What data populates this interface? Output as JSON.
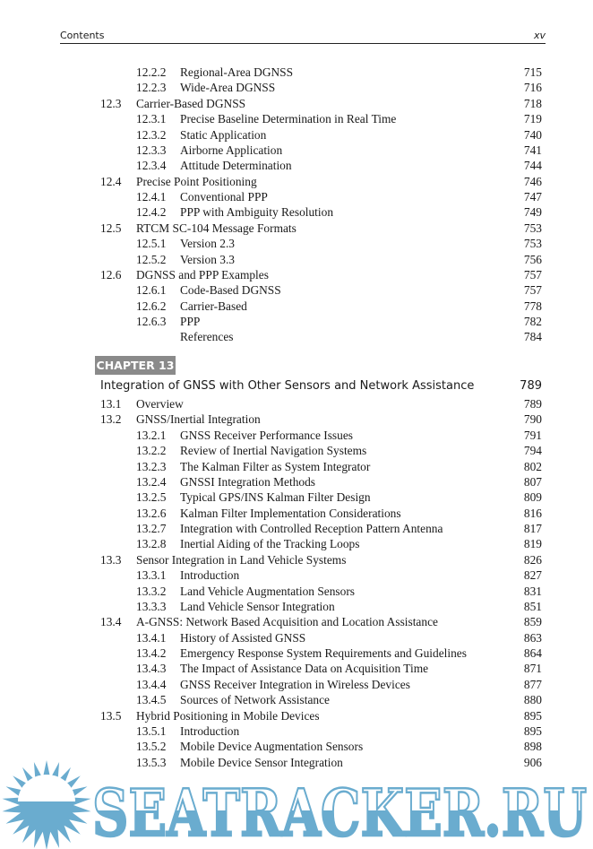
{
  "header": {
    "left": "Contents",
    "right": "xv"
  },
  "toc_before": [
    {
      "level": 2,
      "num": "12.2.2",
      "title": "Regional-Area DGNSS",
      "page": "715"
    },
    {
      "level": 2,
      "num": "12.2.3",
      "title": "Wide-Area DGNSS",
      "page": "716"
    },
    {
      "level": 1,
      "num": "12.3",
      "title": "Carrier-Based DGNSS",
      "page": "718"
    },
    {
      "level": 2,
      "num": "12.3.1",
      "title": "Precise Baseline Determination in Real Time",
      "page": "719"
    },
    {
      "level": 2,
      "num": "12.3.2",
      "title": "Static Application",
      "page": "740"
    },
    {
      "level": 2,
      "num": "12.3.3",
      "title": "Airborne Application",
      "page": "741"
    },
    {
      "level": 2,
      "num": "12.3.4",
      "title": "Attitude Determination",
      "page": "744"
    },
    {
      "level": 1,
      "num": "12.4",
      "title": "Precise Point Positioning",
      "page": "746"
    },
    {
      "level": 2,
      "num": "12.4.1",
      "title": "Conventional PPP",
      "page": "747"
    },
    {
      "level": 2,
      "num": "12.4.2",
      "title": "PPP with Ambiguity Resolution",
      "page": "749"
    },
    {
      "level": 1,
      "num": "12.5",
      "title": "RTCM SC-104 Message Formats",
      "page": "753"
    },
    {
      "level": 2,
      "num": "12.5.1",
      "title": "Version 2.3",
      "page": "753"
    },
    {
      "level": 2,
      "num": "12.5.2",
      "title": "Version 3.3",
      "page": "756"
    },
    {
      "level": 1,
      "num": "12.6",
      "title": "DGNSS and PPP Examples",
      "page": "757"
    },
    {
      "level": 2,
      "num": "12.6.1",
      "title": "Code-Based DGNSS",
      "page": "757"
    },
    {
      "level": 2,
      "num": "12.6.2",
      "title": "Carrier-Based",
      "page": "778"
    },
    {
      "level": 2,
      "num": "12.6.3",
      "title": "PPP",
      "page": "782"
    },
    {
      "level": 2,
      "num": "",
      "title": "References",
      "page": "784"
    }
  ],
  "chapter": {
    "label": "CHAPTER 13",
    "title": "Integration of GNSS with Other Sensors and Network Assistance",
    "page": "789"
  },
  "toc_after": [
    {
      "level": 1,
      "num": "13.1",
      "title": "Overview",
      "page": "789"
    },
    {
      "level": 1,
      "num": "13.2",
      "title": "GNSS/Inertial Integration",
      "page": "790"
    },
    {
      "level": 2,
      "num": "13.2.1",
      "title": "GNSS Receiver Performance Issues",
      "page": "791"
    },
    {
      "level": 2,
      "num": "13.2.2",
      "title": "Review of Inertial Navigation Systems",
      "page": "794"
    },
    {
      "level": 2,
      "num": "13.2.3",
      "title": "The Kalman Filter as System Integrator",
      "page": "802"
    },
    {
      "level": 2,
      "num": "13.2.4",
      "title": "GNSSI Integration Methods",
      "page": "807"
    },
    {
      "level": 2,
      "num": "13.2.5",
      "title": "Typical GPS/INS Kalman Filter Design",
      "page": "809"
    },
    {
      "level": 2,
      "num": "13.2.6",
      "title": "Kalman Filter Implementation Considerations",
      "page": "816"
    },
    {
      "level": 2,
      "num": "13.2.7",
      "title": "Integration with Controlled Reception Pattern Antenna",
      "page": "817"
    },
    {
      "level": 2,
      "num": "13.2.8",
      "title": "Inertial Aiding of the Tracking Loops",
      "page": "819"
    },
    {
      "level": 1,
      "num": "13.3",
      "title": "Sensor Integration in Land Vehicle Systems",
      "page": "826"
    },
    {
      "level": 2,
      "num": "13.3.1",
      "title": "Introduction",
      "page": "827"
    },
    {
      "level": 2,
      "num": "13.3.2",
      "title": "Land Vehicle Augmentation Sensors",
      "page": "831"
    },
    {
      "level": 2,
      "num": "13.3.3",
      "title": "Land Vehicle Sensor Integration",
      "page": "851"
    },
    {
      "level": 1,
      "num": "13.4",
      "title": "A-GNSS: Network Based Acquisition and Location Assistance",
      "page": "859"
    },
    {
      "level": 2,
      "num": "13.4.1",
      "title": "History of Assisted GNSS",
      "page": "863"
    },
    {
      "level": 2,
      "num": "13.4.2",
      "title": "Emergency Response System Requirements and Guidelines",
      "page": "864"
    },
    {
      "level": 2,
      "num": "13.4.3",
      "title": "The Impact of Assistance Data on Acquisition Time",
      "page": "871"
    },
    {
      "level": 2,
      "num": "13.4.4",
      "title": "GNSS Receiver Integration in Wireless Devices",
      "page": "877"
    },
    {
      "level": 2,
      "num": "13.4.5",
      "title": "Sources of Network Assistance",
      "page": "880"
    },
    {
      "level": 1,
      "num": "13.5",
      "title": "Hybrid Positioning in Mobile Devices",
      "page": "895"
    },
    {
      "level": 2,
      "num": "13.5.1",
      "title": "Introduction",
      "page": "895"
    },
    {
      "level": 2,
      "num": "13.5.2",
      "title": "Mobile Device Augmentation Sensors",
      "page": "898"
    },
    {
      "level": 2,
      "num": "13.5.3",
      "title": "Mobile Device Sensor Integration",
      "page": "906"
    }
  ],
  "watermark": {
    "text": "SEATRACKER.RU",
    "color": "#6aaccf"
  }
}
